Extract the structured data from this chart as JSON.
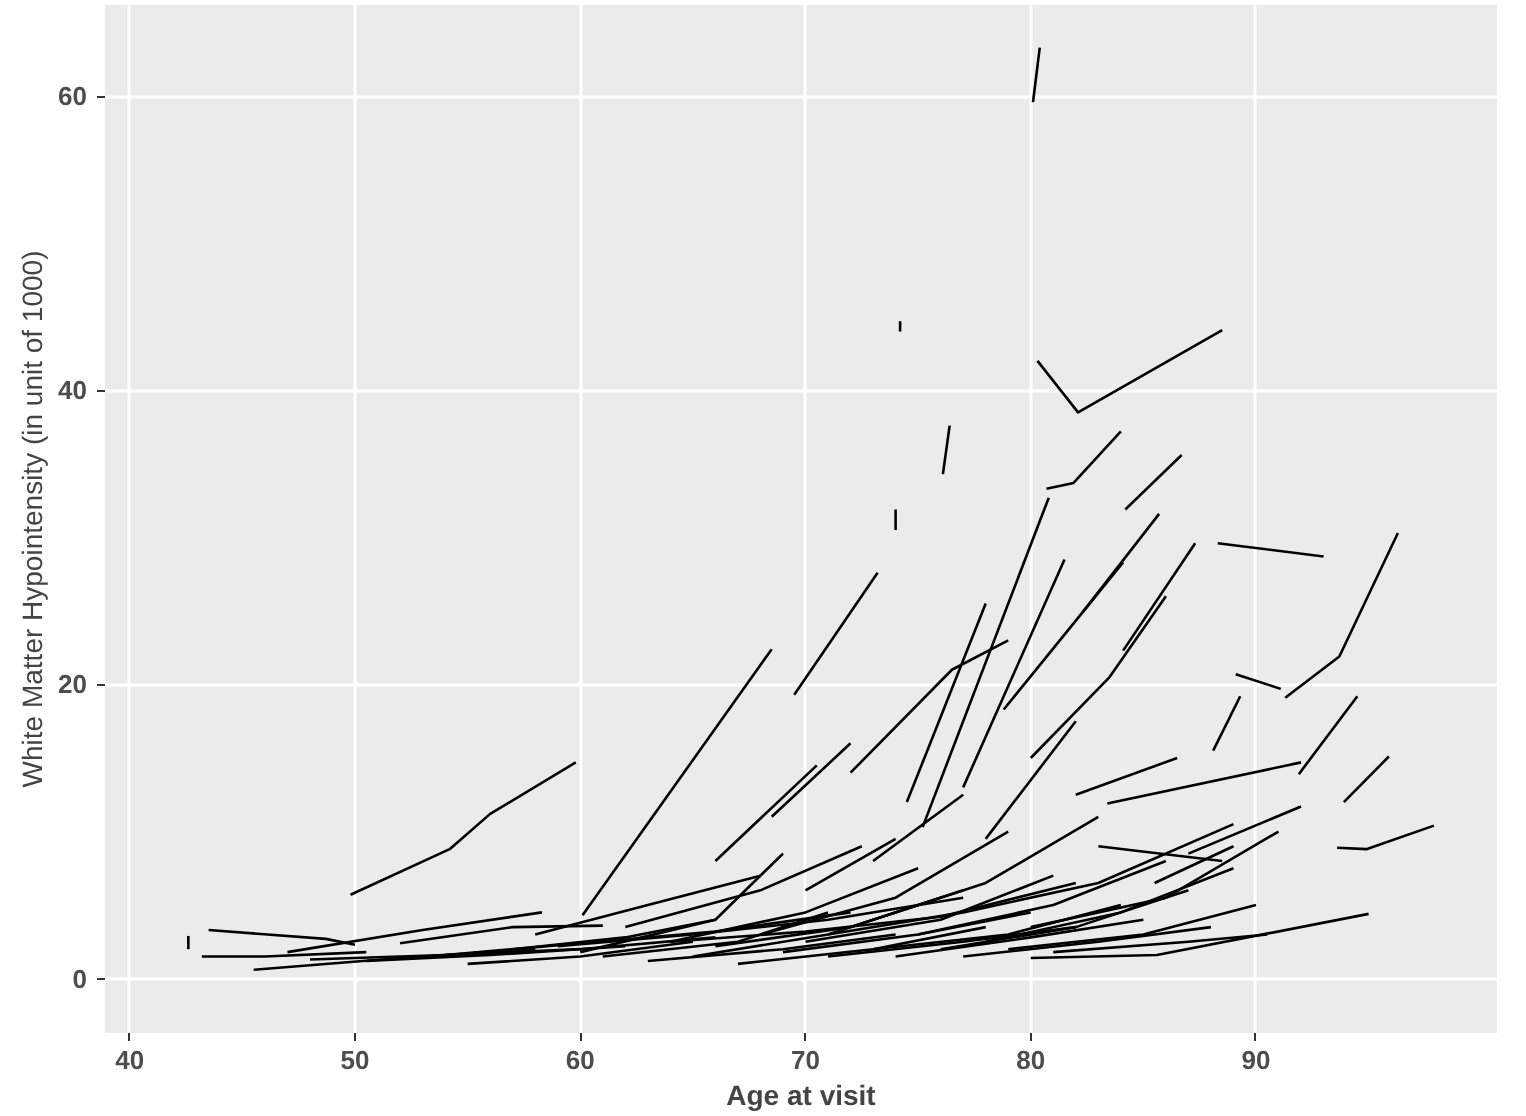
{
  "chart_data": {
    "type": "line",
    "xlabel": "Age at visit",
    "ylabel": "White Matter Hypointensity (in unit of 1000)",
    "xlim": [
      38.9,
      100.7
    ],
    "ylim": [
      -3.7,
      66.2
    ],
    "xticks": [
      40,
      50,
      60,
      70,
      80,
      90
    ],
    "yticks": [
      0,
      20,
      40,
      60
    ],
    "grid": true,
    "series": [
      {
        "color": "#000000",
        "x": [
          80.4,
          80.1
        ],
        "values": [
          63.3,
          59.6
        ]
      },
      {
        "color": "#000000",
        "x": [
          74.2,
          74.2
        ],
        "values": [
          44.7,
          44.0
        ]
      },
      {
        "color": "#000000",
        "x": [
          80.3,
          82.1,
          88.5
        ],
        "values": [
          42.0,
          38.5,
          44.1
        ]
      },
      {
        "color": "#000000",
        "x": [
          76.4,
          76.1
        ],
        "values": [
          37.6,
          34.3
        ]
      },
      {
        "color": "#000000",
        "x": [
          74.0,
          74.0
        ],
        "values": [
          31.9,
          30.5
        ]
      },
      {
        "color": "#000000",
        "x": [
          80.7,
          81.9,
          84.0
        ],
        "values": [
          33.3,
          33.7,
          37.2
        ]
      },
      {
        "color": "#000000",
        "x": [
          86.7,
          84.2
        ],
        "values": [
          35.6,
          31.9
        ]
      },
      {
        "color": "#000000",
        "x": [
          96.3,
          93.7,
          91.3
        ],
        "values": [
          30.3,
          21.9,
          19.1
        ]
      },
      {
        "color": "#000000",
        "x": [
          88.3,
          93.0
        ],
        "values": [
          29.6,
          28.7
        ]
      },
      {
        "color": "#000000",
        "x": [
          89.1,
          91.1
        ],
        "values": [
          20.7,
          19.7
        ]
      },
      {
        "color": "#000000",
        "x": [
          89.3,
          88.1
        ],
        "values": [
          19.2,
          15.5
        ]
      },
      {
        "color": "#000000",
        "x": [
          94.5,
          91.9
        ],
        "values": [
          19.2,
          13.9
        ]
      },
      {
        "color": "#000000",
        "x": [
          95.9,
          93.9
        ],
        "values": [
          15.1,
          12.0
        ]
      },
      {
        "color": "#000000",
        "x": [
          97.9,
          94.9,
          93.6
        ],
        "values": [
          10.4,
          8.8,
          8.9
        ]
      },
      {
        "color": "#000000",
        "x": [
          95.0,
          85.6,
          80.0
        ],
        "values": [
          4.4,
          1.6,
          1.4
        ]
      },
      {
        "color": "#000000",
        "x": [
          92.0,
          83.4
        ],
        "values": [
          14.7,
          11.9
        ]
      },
      {
        "color": "#000000",
        "x": [
          92.0,
          87.0
        ],
        "values": [
          11.7,
          8.5
        ]
      },
      {
        "color": "#000000",
        "x": [
          49.8,
          54.2,
          56.0,
          59.8
        ],
        "values": [
          5.7,
          8.8,
          11.2,
          14.7
        ]
      },
      {
        "color": "#000000",
        "x": [
          60.1,
          68.5
        ],
        "values": [
          4.3,
          22.4
        ]
      },
      {
        "color": "#000000",
        "x": [
          69.5,
          73.2
        ],
        "values": [
          19.3,
          27.6
        ]
      },
      {
        "color": "#000000",
        "x": [
          75.2,
          80.8
        ],
        "values": [
          10.3,
          32.7
        ]
      },
      {
        "color": "#000000",
        "x": [
          77.0,
          81.5
        ],
        "values": [
          13.0,
          28.5
        ]
      },
      {
        "color": "#000000",
        "x": [
          82.3,
          85.7
        ],
        "values": [
          24.9,
          31.6
        ]
      },
      {
        "color": "#000000",
        "x": [
          84.1,
          87.3
        ],
        "values": [
          22.3,
          29.6
        ]
      },
      {
        "color": "#000000",
        "x": [
          78.8,
          84.1
        ],
        "values": [
          18.3,
          28.3
        ]
      },
      {
        "color": "#000000",
        "x": [
          72.0,
          76.5,
          79.0
        ],
        "values": [
          14.0,
          21.0,
          23.0
        ]
      },
      {
        "color": "#000000",
        "x": [
          74.5,
          78.0
        ],
        "values": [
          12.0,
          25.5
        ]
      },
      {
        "color": "#000000",
        "x": [
          68.5,
          72.0
        ],
        "values": [
          11.0,
          16.0
        ]
      },
      {
        "color": "#000000",
        "x": [
          66.0,
          70.5
        ],
        "values": [
          8.0,
          14.5
        ]
      },
      {
        "color": "#000000",
        "x": [
          80.0,
          83.5,
          86.0
        ],
        "values": [
          15.0,
          20.5,
          26.0
        ]
      },
      {
        "color": "#000000",
        "x": [
          82.0,
          86.5
        ],
        "values": [
          12.5,
          15.0
        ]
      },
      {
        "color": "#000000",
        "x": [
          83.0,
          88.5
        ],
        "values": [
          9.0,
          8.0
        ]
      },
      {
        "color": "#000000",
        "x": [
          85.5,
          89.0
        ],
        "values": [
          6.5,
          9.0
        ]
      },
      {
        "color": "#000000",
        "x": [
          78.0,
          82.0
        ],
        "values": [
          9.5,
          17.5
        ]
      },
      {
        "color": "#000000",
        "x": [
          73.0,
          77.0
        ],
        "values": [
          8.0,
          12.5
        ]
      },
      {
        "color": "#000000",
        "x": [
          70.0,
          74.0
        ],
        "values": [
          6.0,
          9.5
        ]
      },
      {
        "color": "#000000",
        "x": [
          43.5,
          48.7,
          50.0
        ],
        "values": [
          3.3,
          2.7,
          2.3
        ]
      },
      {
        "color": "#000000",
        "x": [
          43.2,
          46.0,
          50.5
        ],
        "values": [
          1.5,
          1.5,
          1.8
        ]
      },
      {
        "color": "#000000",
        "x": [
          42.6,
          42.6
        ],
        "values": [
          2.9,
          2.0
        ]
      },
      {
        "color": "#000000",
        "x": [
          45.5,
          52.0,
          58.0
        ],
        "values": [
          0.6,
          1.4,
          2.0
        ]
      },
      {
        "color": "#000000",
        "x": [
          47.0,
          53.0,
          58.3
        ],
        "values": [
          1.8,
          3.3,
          4.5
        ]
      },
      {
        "color": "#000000",
        "x": [
          50.5,
          56.0,
          62.0
        ],
        "values": [
          1.2,
          1.6,
          2.2
        ]
      },
      {
        "color": "#000000",
        "x": [
          52.0,
          57.0,
          61.0
        ],
        "values": [
          2.4,
          3.5,
          3.6
        ]
      },
      {
        "color": "#000000",
        "x": [
          55.0,
          60.0,
          65.0
        ],
        "values": [
          1.0,
          1.5,
          2.5
        ]
      },
      {
        "color": "#000000",
        "x": [
          57.0,
          62.0,
          66.0
        ],
        "values": [
          2.0,
          2.8,
          4.0
        ]
      },
      {
        "color": "#000000",
        "x": [
          58.0,
          63.0,
          68.0
        ],
        "values": [
          3.0,
          5.0,
          7.0
        ]
      },
      {
        "color": "#000000",
        "x": [
          60.0,
          66.0,
          69.0
        ],
        "values": [
          1.8,
          4.0,
          8.5
        ]
      },
      {
        "color": "#000000",
        "x": [
          61.0,
          67.0,
          71.0
        ],
        "values": [
          1.5,
          2.5,
          4.5
        ]
      },
      {
        "color": "#000000",
        "x": [
          62.0,
          68.0,
          72.5
        ],
        "values": [
          3.5,
          6.0,
          9.0
        ]
      },
      {
        "color": "#000000",
        "x": [
          63.0,
          69.0,
          74.0
        ],
        "values": [
          1.2,
          2.0,
          3.0
        ]
      },
      {
        "color": "#000000",
        "x": [
          64.0,
          70.0,
          75.0
        ],
        "values": [
          2.5,
          4.5,
          7.5
        ]
      },
      {
        "color": "#000000",
        "x": [
          65.0,
          71.0,
          76.0
        ],
        "values": [
          1.5,
          3.0,
          5.5
        ]
      },
      {
        "color": "#000000",
        "x": [
          66.0,
          72.0,
          77.0
        ],
        "values": [
          2.2,
          3.5,
          6.0
        ]
      },
      {
        "color": "#000000",
        "x": [
          67.0,
          73.0,
          78.0
        ],
        "values": [
          1.0,
          2.0,
          3.5
        ]
      },
      {
        "color": "#000000",
        "x": [
          68.0,
          74.0,
          79.0
        ],
        "values": [
          3.0,
          5.5,
          10.0
        ]
      },
      {
        "color": "#000000",
        "x": [
          69.0,
          75.0,
          80.0
        ],
        "values": [
          1.8,
          3.0,
          4.5
        ]
      },
      {
        "color": "#000000",
        "x": [
          70.0,
          76.0,
          81.0
        ],
        "values": [
          2.5,
          4.0,
          7.0
        ]
      },
      {
        "color": "#000000",
        "x": [
          71.0,
          77.0,
          82.0
        ],
        "values": [
          1.5,
          2.5,
          3.5
        ]
      },
      {
        "color": "#000000",
        "x": [
          72.0,
          78.0,
          83.0
        ],
        "values": [
          3.5,
          6.5,
          11.0
        ]
      },
      {
        "color": "#000000",
        "x": [
          73.0,
          79.0,
          84.0
        ],
        "values": [
          2.0,
          3.0,
          5.0
        ]
      },
      {
        "color": "#000000",
        "x": [
          74.0,
          80.0,
          85.0
        ],
        "values": [
          1.5,
          2.8,
          4.0
        ]
      },
      {
        "color": "#000000",
        "x": [
          75.0,
          81.0,
          86.0
        ],
        "values": [
          3.0,
          5.0,
          8.0
        ]
      },
      {
        "color": "#000000",
        "x": [
          76.0,
          82.0,
          87.0
        ],
        "values": [
          2.0,
          3.5,
          6.0
        ]
      },
      {
        "color": "#000000",
        "x": [
          77.0,
          83.0,
          88.0
        ],
        "values": [
          1.5,
          2.5,
          3.5
        ]
      },
      {
        "color": "#000000",
        "x": [
          78.0,
          84.0,
          89.0
        ],
        "values": [
          2.5,
          4.5,
          7.5
        ]
      },
      {
        "color": "#000000",
        "x": [
          79.0,
          85.0,
          90.0
        ],
        "values": [
          2.0,
          3.0,
          5.0
        ]
      },
      {
        "color": "#000000",
        "x": [
          80.0,
          86.0,
          91.0
        ],
        "values": [
          3.5,
          5.5,
          10.0
        ]
      },
      {
        "color": "#000000",
        "x": [
          81.0,
          87.0,
          90.5
        ],
        "values": [
          1.8,
          2.5,
          3.0
        ]
      },
      {
        "color": "#000000",
        "x": [
          48.0,
          54.0,
          60.0,
          66.0
        ],
        "values": [
          1.3,
          1.6,
          2.0,
          2.8
        ]
      },
      {
        "color": "#000000",
        "x": [
          54.0,
          60.0,
          66.0,
          72.0
        ],
        "values": [
          1.6,
          2.4,
          3.2,
          4.5
        ]
      },
      {
        "color": "#000000",
        "x": [
          59.0,
          65.0,
          71.0,
          77.0
        ],
        "values": [
          2.2,
          3.0,
          4.0,
          5.5
        ]
      },
      {
        "color": "#000000",
        "x": [
          64.0,
          70.0,
          76.0,
          82.0
        ],
        "values": [
          2.5,
          3.2,
          4.2,
          6.5
        ]
      },
      {
        "color": "#000000",
        "x": [
          71.0,
          77.0,
          83.0,
          89.0
        ],
        "values": [
          3.0,
          4.5,
          6.5,
          10.5
        ]
      }
    ]
  }
}
